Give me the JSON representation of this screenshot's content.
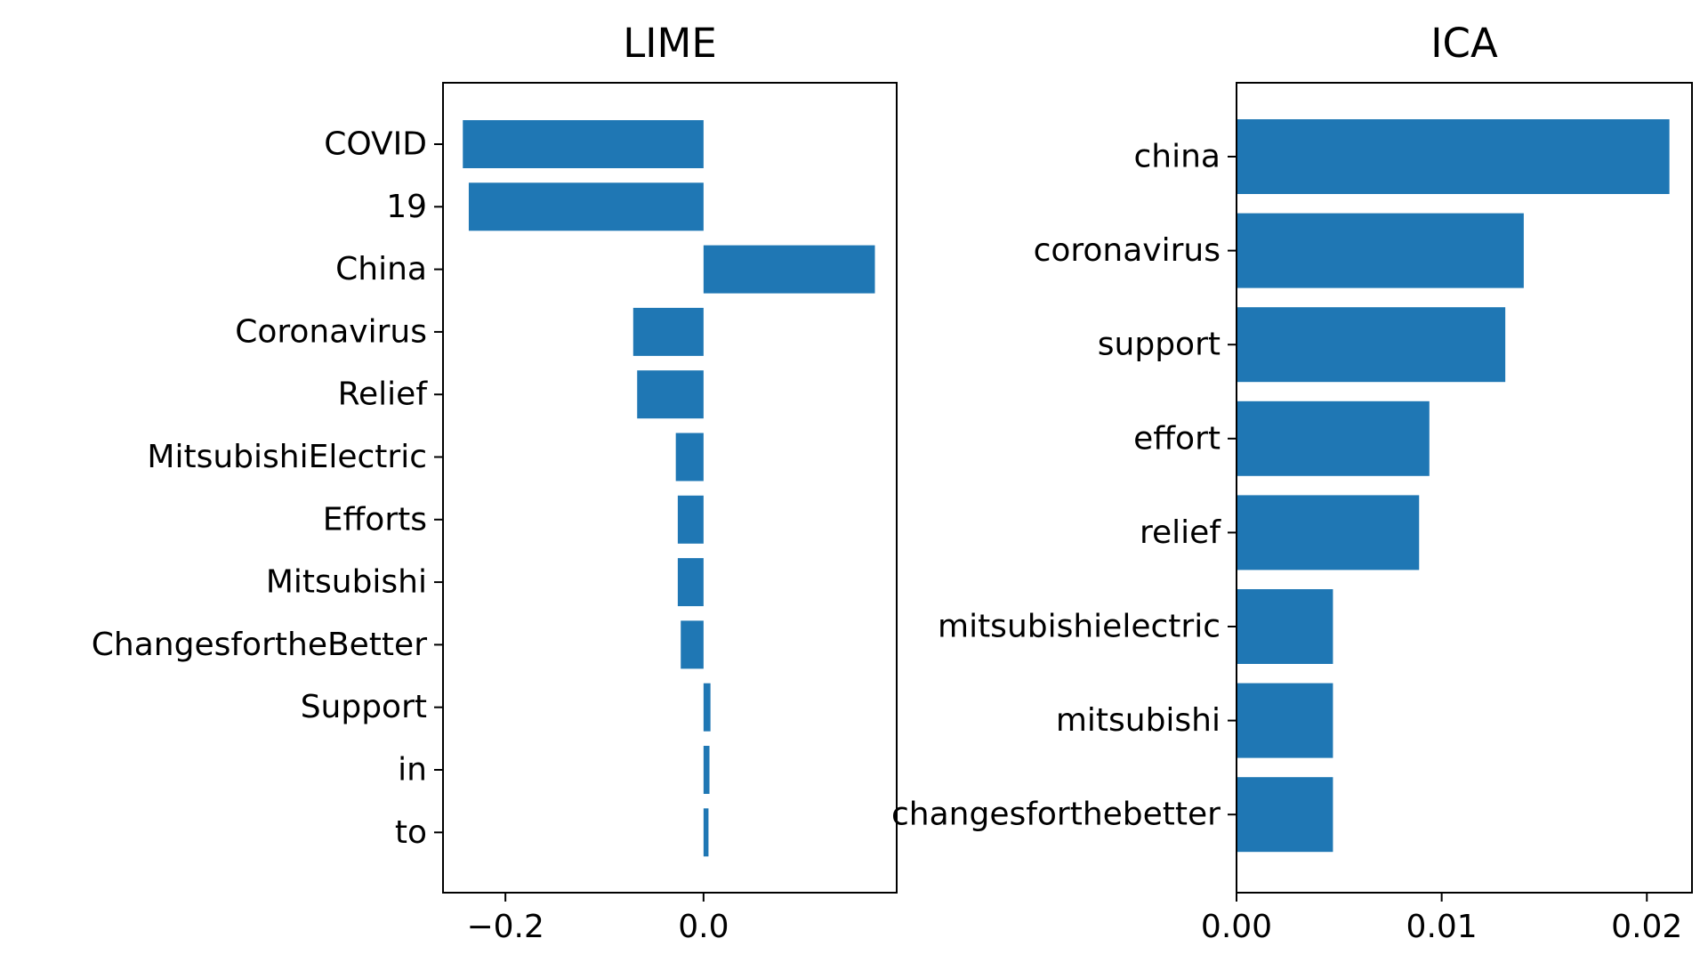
{
  "chart_data": [
    {
      "type": "bar",
      "orientation": "horizontal",
      "title": "LIME",
      "categories": [
        "COVID",
        "19",
        "China",
        "Coronavirus",
        "Relief",
        "MitsubishiElectric",
        "Efforts",
        "Mitsubishi",
        "ChangesfortheBetter",
        "Support",
        "in",
        "to"
      ],
      "values": [
        -0.243,
        -0.237,
        0.173,
        -0.071,
        -0.067,
        -0.028,
        -0.026,
        -0.026,
        -0.023,
        0.007,
        0.006,
        0.005
      ],
      "xlim": [
        -0.263,
        0.195
      ],
      "xticks": [
        -0.2,
        0.0
      ],
      "xtick_labels": [
        "−0.2",
        "0.0"
      ],
      "xlabel": "",
      "ylabel": "",
      "color": "#1f77b4"
    },
    {
      "type": "bar",
      "orientation": "horizontal",
      "title": "ICA",
      "categories": [
        "china",
        "coronavirus",
        "support",
        "effort",
        "relief",
        "mitsubishielectric",
        "mitsubishi",
        "changesforthebetter"
      ],
      "values": [
        0.0211,
        0.014,
        0.0131,
        0.0094,
        0.0089,
        0.0047,
        0.0047,
        0.0047
      ],
      "xlim": [
        0.0,
        0.0222
      ],
      "xticks": [
        0.0,
        0.01,
        0.02
      ],
      "xtick_labels": [
        "0.00",
        "0.01",
        "0.02"
      ],
      "xlabel": "",
      "ylabel": "",
      "color": "#1f77b4"
    }
  ]
}
